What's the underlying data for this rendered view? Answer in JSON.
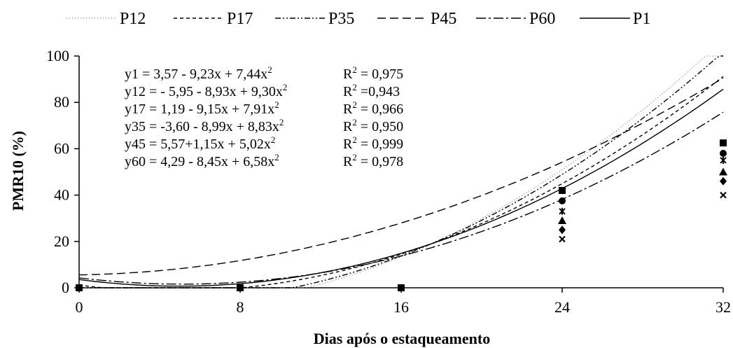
{
  "chart_data": {
    "type": "scatter",
    "xlabel": "Dias após o estaqueamento",
    "ylabel": "PMR10 (%)",
    "xlim": [
      0,
      32
    ],
    "ylim": [
      0,
      100
    ],
    "xticks": [
      "0",
      "8",
      "16",
      "24",
      "32"
    ],
    "yticks": [
      "0",
      "20",
      "40",
      "60",
      "80",
      "100"
    ],
    "grid": false,
    "legend_position": "top",
    "series": [
      {
        "name": "P12",
        "dash": "1,3",
        "color": "#888888",
        "marker": "square",
        "x": [
          0,
          8,
          16,
          24,
          32
        ],
        "y": [
          0,
          0,
          0,
          42,
          62.5
        ],
        "fit": {
          "a": -5.95,
          "b": -8.93,
          "c": 9.3
        }
      },
      {
        "name": "P17",
        "dash": "5,4",
        "color": "#000000",
        "marker": "circle",
        "x": [
          24,
          32
        ],
        "y": [
          37.5,
          58
        ],
        "fit": {
          "a": 1.19,
          "b": -9.15,
          "c": 7.91
        }
      },
      {
        "name": "P35",
        "dash": "8,3,2,3,2,3",
        "color": "#000000",
        "marker": "star",
        "x": [
          24,
          32
        ],
        "y": [
          33,
          55
        ],
        "fit": {
          "a": -3.6,
          "b": -8.99,
          "c": 8.83
        }
      },
      {
        "name": "P45",
        "dash": "12,6",
        "color": "#000000",
        "marker": "triangle",
        "x": [
          24,
          32
        ],
        "y": [
          29,
          50
        ],
        "fit": {
          "a": 5.57,
          "b": 1.15,
          "c": 5.02
        }
      },
      {
        "name": "P60",
        "dash": "14,4,3,4",
        "color": "#000000",
        "marker": "x",
        "x": [
          24,
          32
        ],
        "y": [
          21,
          40
        ],
        "fit": {
          "a": 4.29,
          "b": -8.45,
          "c": 6.58
        }
      },
      {
        "name": "P1",
        "dash": "",
        "color": "#000000",
        "marker": "diamond",
        "x": [
          24,
          32
        ],
        "y": [
          25,
          46
        ],
        "fit": {
          "a": 3.57,
          "b": -9.23,
          "c": 7.44
        }
      }
    ],
    "annotations": [
      {
        "eq": "y1 = 3,57 - 9,23x + 7,44x",
        "r2": "R = 0,975"
      },
      {
        "eq": "y12 = - 5,95 - 8,93x + 9,30x",
        "r2": "R =0,943"
      },
      {
        "eq": "y17 = 1,19 - 9,15x + 7,91x",
        "r2": "R = 0,966"
      },
      {
        "eq": "y35 = -3,60 - 8,99x + 8,83x",
        "r2": "R = 0,950"
      },
      {
        "eq": "y45 = 5,57+1,15x + 5,02x",
        "r2": "R = 0,999"
      },
      {
        "eq": "y60 = 4,29 - 8,45x + 6,58x",
        "r2": "R = 0,978"
      }
    ],
    "superscript": "2"
  }
}
